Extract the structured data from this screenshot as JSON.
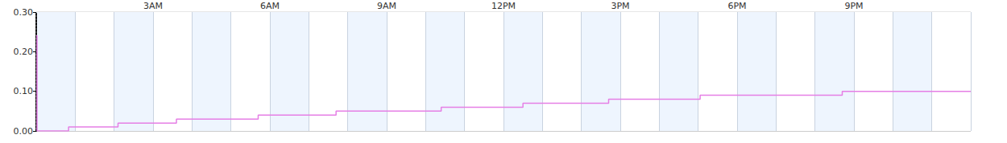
{
  "chart_data": {
    "type": "line",
    "line_style": "step",
    "color": "#e57fe5",
    "grid": true,
    "x": [
      0,
      0.02,
      0.83,
      2.1,
      3.6,
      5.7,
      7.7,
      10.4,
      12.5,
      14.7,
      17.05,
      20.7,
      24
    ],
    "values": [
      0.24,
      0,
      0.01,
      0.02,
      0.03,
      0.04,
      0.05,
      0.06,
      0.07,
      0.08,
      0.09,
      0.1,
      0.1
    ],
    "xlim": [
      0,
      24
    ],
    "xticks": [
      {
        "value": 3,
        "label": "3AM"
      },
      {
        "value": 6,
        "label": "6AM"
      },
      {
        "value": 9,
        "label": "9AM"
      },
      {
        "value": 12,
        "label": "12PM"
      },
      {
        "value": 15,
        "label": "3PM"
      },
      {
        "value": 18,
        "label": "6PM"
      },
      {
        "value": 21,
        "label": "9PM"
      }
    ],
    "ylim": [
      0,
      0.3
    ],
    "yticks": [
      {
        "value": 0,
        "label": "0.00"
      },
      {
        "value": 0.1,
        "label": "0.10"
      },
      {
        "value": 0.2,
        "label": "0.20"
      },
      {
        "value": 0.3,
        "label": "0.30"
      }
    ]
  }
}
